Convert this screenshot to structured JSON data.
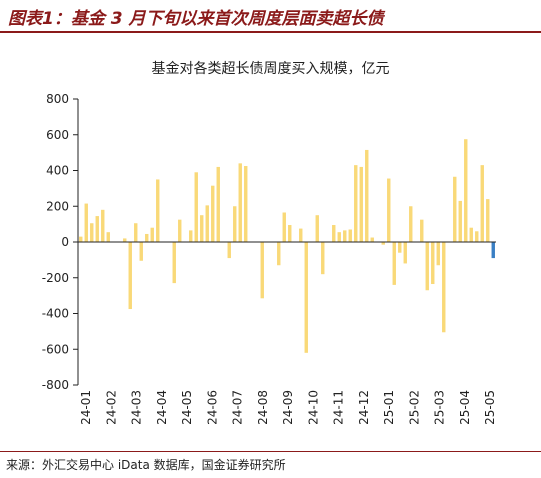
{
  "header": {
    "figure_title": "图表1：基金 3 月下旬以来首次周度层面卖超长债"
  },
  "footer": {
    "source": "来源：外汇交易中心 iData 数据库，国金证券研究所"
  },
  "colors": {
    "bar_positive": "#f9d978",
    "bar_latest": "#3a7fc4",
    "accent": "#8b1a1a"
  },
  "chart_data": {
    "type": "bar",
    "title": "基金对各类超长债周度买入规模，亿元",
    "xlabel": "",
    "ylabel": "",
    "ylim": [
      -800,
      800
    ],
    "yticks": [
      800,
      600,
      400,
      200,
      0,
      -200,
      -400,
      -600,
      -800
    ],
    "xticks": [
      "24-01",
      "24-02",
      "24-03",
      "24-04",
      "24-05",
      "24-06",
      "24-07",
      "24-08",
      "24-09",
      "24-10",
      "24-11",
      "24-12",
      "25-01",
      "25-02",
      "25-03",
      "25-04",
      "25-05"
    ],
    "grid": false,
    "legend": "none",
    "values": [
      30,
      215,
      105,
      145,
      180,
      55,
      0,
      0,
      20,
      -375,
      105,
      -105,
      45,
      80,
      350,
      0,
      0,
      -230,
      125,
      0,
      65,
      390,
      150,
      205,
      315,
      420,
      0,
      -90,
      200,
      440,
      425,
      0,
      0,
      -315,
      0,
      0,
      -130,
      165,
      95,
      0,
      75,
      -620,
      0,
      150,
      -180,
      0,
      95,
      55,
      65,
      70,
      430,
      420,
      515,
      25,
      0,
      -15,
      355,
      -240,
      -60,
      -120,
      200,
      0,
      125,
      -270,
      -235,
      -130,
      -505,
      0,
      365,
      230,
      575,
      80,
      60,
      430,
      240,
      -90
    ]
  }
}
